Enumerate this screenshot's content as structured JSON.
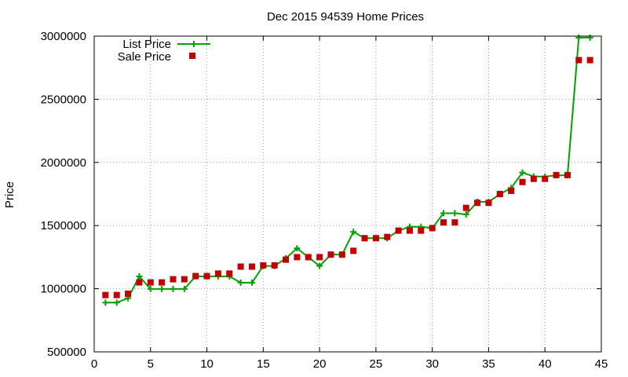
{
  "chart_data": {
    "type": "line",
    "title": "Dec 2015 94539 Home Prices",
    "xlabel": "",
    "ylabel": "Price",
    "xlim": [
      0,
      45
    ],
    "ylim": [
      500000,
      3000000
    ],
    "x_ticks": [
      "0",
      "5",
      "10",
      "15",
      "20",
      "25",
      "30",
      "35",
      "40",
      "45"
    ],
    "y_ticks": [
      "500000",
      "1000000",
      "1500000",
      "2000000",
      "2500000",
      "3000000"
    ],
    "grid": true,
    "legend_position": "top-left",
    "x": [
      1,
      2,
      3,
      4,
      5,
      6,
      7,
      8,
      9,
      10,
      11,
      12,
      13,
      14,
      15,
      16,
      17,
      18,
      19,
      20,
      21,
      22,
      23,
      24,
      25,
      26,
      27,
      28,
      29,
      30,
      31,
      32,
      33,
      34,
      35,
      36,
      37,
      38,
      39,
      40,
      41,
      42,
      43,
      44
    ],
    "series": [
      {
        "name": "List Price",
        "color": "#00a000",
        "style": "line-with-plus-markers",
        "values": [
          890000,
          890000,
          925000,
          1098000,
          998000,
          998000,
          998000,
          998000,
          1098000,
          1098000,
          1098000,
          1098000,
          1048000,
          1048000,
          1180000,
          1180000,
          1240000,
          1320000,
          1250000,
          1180000,
          1270000,
          1270000,
          1450000,
          1400000,
          1400000,
          1400000,
          1460000,
          1490000,
          1490000,
          1480000,
          1598000,
          1598000,
          1588000,
          1688000,
          1688000,
          1748000,
          1798000,
          1920000,
          1888000,
          1888000,
          1898000,
          1898000,
          2988000,
          2988000
        ]
      },
      {
        "name": "Sale Price",
        "color": "#c00000",
        "style": "square-markers",
        "values": [
          950000,
          950000,
          960000,
          1050000,
          1050000,
          1050000,
          1075000,
          1075000,
          1100000,
          1100000,
          1120000,
          1120000,
          1175000,
          1175000,
          1185000,
          1185000,
          1230000,
          1250000,
          1250000,
          1250000,
          1270000,
          1270000,
          1300000,
          1400000,
          1400000,
          1410000,
          1460000,
          1460000,
          1460000,
          1480000,
          1525000,
          1525000,
          1640000,
          1680000,
          1680000,
          1750000,
          1775000,
          1845000,
          1870000,
          1870000,
          1900000,
          1900000,
          2810000,
          2810000
        ]
      }
    ]
  }
}
